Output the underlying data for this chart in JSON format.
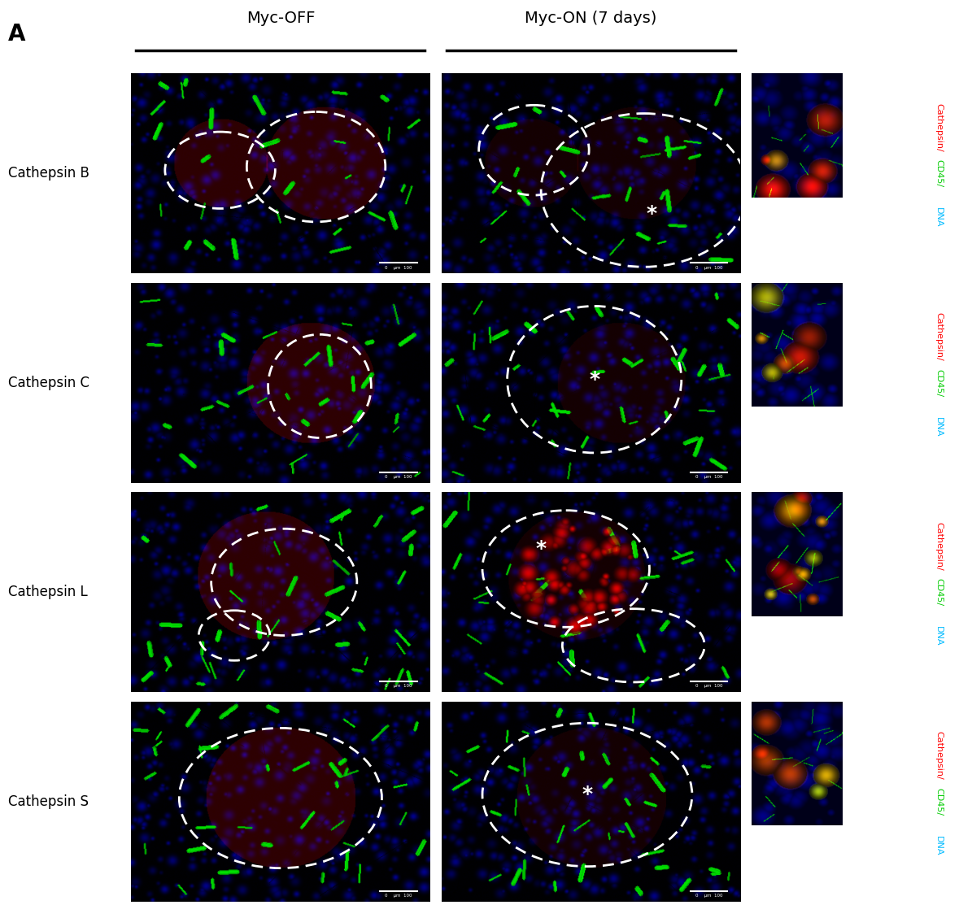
{
  "panel_label": "A",
  "col_labels": [
    "Myc-OFF",
    "Myc-ON (7 days)"
  ],
  "row_labels": [
    "Cathepsin B",
    "Cathepsin C",
    "Cathepsin L",
    "Cathepsin S"
  ],
  "side_label_texts": [
    "Cathepsin",
    "CD45",
    "DNA"
  ],
  "side_label_colors": [
    "#FF0000",
    "#00CC00",
    "#00BBFF"
  ],
  "background_color": "#ffffff",
  "figsize": [
    11.95,
    11.29
  ],
  "dpi": 100
}
